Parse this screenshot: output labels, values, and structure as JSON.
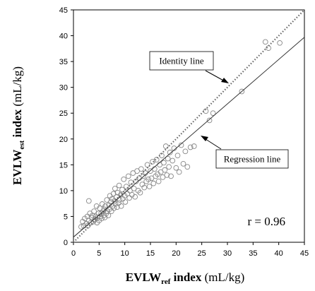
{
  "chart_data": {
    "type": "scatter",
    "xlim": [
      0,
      45
    ],
    "ylim": [
      0,
      45
    ],
    "x_ticks": [
      0,
      5,
      10,
      15,
      20,
      25,
      30,
      35,
      40,
      45
    ],
    "y_ticks": [
      0,
      5,
      10,
      15,
      20,
      25,
      30,
      35,
      40,
      45
    ],
    "grid": false,
    "xlabel": {
      "main": "EVLW",
      "sub": "ref",
      "bold_suffix": " index",
      "unit": " (mL/kg)"
    },
    "ylabel": {
      "main": "EVLW",
      "sub": "est",
      "bold_suffix": " index",
      "unit": " (mL/kg)"
    },
    "annotations": {
      "identity_label": "Identity line",
      "regression_label": "Regression line",
      "r_text": "r = 0.96"
    },
    "lines": {
      "identity": {
        "slope": 1,
        "intercept": 0,
        "style": "dotted"
      },
      "regression": {
        "slope": 0.86,
        "intercept": 1.0,
        "style": "solid"
      }
    },
    "colors": {
      "points": "#888888",
      "regression": "#333333",
      "identity": "#666666"
    },
    "points": [
      [
        1.5,
        3.0
      ],
      [
        1.8,
        4.0
      ],
      [
        2.0,
        3.2
      ],
      [
        2.2,
        4.6
      ],
      [
        2.5,
        3.6
      ],
      [
        2.7,
        5.0
      ],
      [
        2.8,
        3.2
      ],
      [
        3.0,
        4.2
      ],
      [
        3.0,
        8.0
      ],
      [
        3.2,
        5.6
      ],
      [
        3.4,
        3.8
      ],
      [
        3.5,
        4.8
      ],
      [
        3.7,
        5.2
      ],
      [
        3.9,
        4.0
      ],
      [
        4.0,
        6.0
      ],
      [
        4.2,
        4.4
      ],
      [
        4.3,
        5.0
      ],
      [
        4.5,
        7.0
      ],
      [
        4.6,
        3.8
      ],
      [
        4.7,
        4.8
      ],
      [
        4.9,
        5.6
      ],
      [
        5.0,
        4.2
      ],
      [
        5.1,
        6.6
      ],
      [
        5.2,
        5.0
      ],
      [
        5.4,
        5.6
      ],
      [
        5.5,
        4.6
      ],
      [
        5.6,
        7.4
      ],
      [
        5.8,
        6.0
      ],
      [
        5.9,
        5.2
      ],
      [
        6.0,
        6.4
      ],
      [
        6.1,
        4.8
      ],
      [
        6.2,
        7.0
      ],
      [
        6.4,
        5.6
      ],
      [
        6.5,
        8.2
      ],
      [
        6.6,
        6.0
      ],
      [
        6.8,
        5.2
      ],
      [
        6.9,
        7.2
      ],
      [
        7.0,
        6.4
      ],
      [
        7.1,
        9.0
      ],
      [
        7.3,
        7.8
      ],
      [
        7.4,
        6.0
      ],
      [
        7.5,
        8.4
      ],
      [
        7.6,
        7.0
      ],
      [
        7.8,
        9.4
      ],
      [
        7.9,
        6.6
      ],
      [
        8.0,
        8.0
      ],
      [
        8.1,
        10.4
      ],
      [
        8.2,
        7.4
      ],
      [
        8.4,
        8.8
      ],
      [
        8.5,
        6.8
      ],
      [
        8.6,
        9.6
      ],
      [
        8.8,
        7.6
      ],
      [
        8.9,
        11.0
      ],
      [
        9.0,
        8.2
      ],
      [
        9.2,
        9.2
      ],
      [
        9.3,
        7.0
      ],
      [
        9.5,
        10.2
      ],
      [
        9.6,
        8.4
      ],
      [
        9.8,
        12.2
      ],
      [
        10.0,
        9.0
      ],
      [
        10.1,
        7.8
      ],
      [
        10.3,
        10.8
      ],
      [
        10.5,
        9.4
      ],
      [
        10.7,
        12.8
      ],
      [
        10.9,
        8.6
      ],
      [
        11.0,
        10.0
      ],
      [
        11.2,
        11.6
      ],
      [
        11.4,
        9.2
      ],
      [
        11.6,
        13.4
      ],
      [
        11.8,
        10.4
      ],
      [
        12.0,
        8.8
      ],
      [
        12.2,
        11.8
      ],
      [
        12.4,
        13.8
      ],
      [
        12.6,
        10.0
      ],
      [
        12.8,
        12.4
      ],
      [
        13.0,
        9.6
      ],
      [
        13.2,
        14.2
      ],
      [
        13.4,
        11.2
      ],
      [
        13.6,
        12.8
      ],
      [
        13.8,
        10.6
      ],
      [
        14.0,
        13.4
      ],
      [
        14.2,
        11.8
      ],
      [
        14.4,
        15.0
      ],
      [
        14.6,
        12.2
      ],
      [
        14.8,
        10.8
      ],
      [
        15.0,
        13.8
      ],
      [
        15.2,
        12.4
      ],
      [
        15.4,
        15.6
      ],
      [
        15.6,
        11.4
      ],
      [
        15.8,
        14.2
      ],
      [
        16.0,
        12.8
      ],
      [
        16.2,
        16.0
      ],
      [
        16.4,
        13.2
      ],
      [
        16.6,
        11.8
      ],
      [
        16.8,
        15.0
      ],
      [
        17.0,
        13.6
      ],
      [
        17.2,
        16.8
      ],
      [
        17.4,
        12.6
      ],
      [
        17.6,
        15.4
      ],
      [
        17.8,
        14.0
      ],
      [
        18.0,
        18.6
      ],
      [
        18.2,
        13.0
      ],
      [
        18.4,
        16.2
      ],
      [
        18.6,
        14.6
      ],
      [
        18.8,
        17.4
      ],
      [
        19.0,
        12.8
      ],
      [
        19.3,
        15.8
      ],
      [
        19.6,
        18.2
      ],
      [
        20.0,
        14.4
      ],
      [
        20.3,
        16.8
      ],
      [
        20.6,
        13.6
      ],
      [
        21.0,
        18.8
      ],
      [
        21.4,
        15.2
      ],
      [
        21.8,
        17.6
      ],
      [
        22.2,
        14.6
      ],
      [
        22.8,
        18.4
      ],
      [
        23.5,
        18.6
      ],
      [
        25.8,
        25.4
      ],
      [
        26.5,
        23.6
      ],
      [
        27.2,
        25.0
      ],
      [
        32.8,
        29.2
      ],
      [
        37.4,
        38.8
      ],
      [
        38.0,
        37.6
      ],
      [
        40.2,
        38.6
      ]
    ]
  }
}
